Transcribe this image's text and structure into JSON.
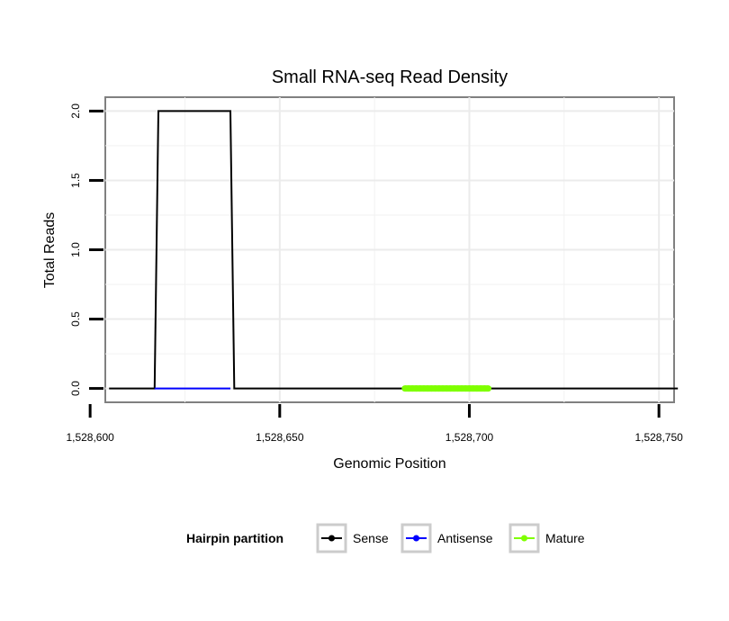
{
  "chart_data": {
    "type": "line",
    "title": "Small RNA-seq Read Density",
    "xlabel": "Genomic Position",
    "ylabel": "Total Reads",
    "xlim": [
      1528604,
      1528754
    ],
    "ylim": [
      -0.1,
      2.1
    ],
    "x_ticks": [
      1528600,
      1528650,
      1528700,
      1528750
    ],
    "x_tick_labels": [
      "1,528,600",
      "1,528,650",
      "1,528,700",
      "1,528,750"
    ],
    "y_ticks": [
      0,
      0.5,
      1,
      1.5,
      2
    ],
    "y_tick_labels": [
      "0.0",
      "0.5",
      "1.0",
      "1.5",
      "2.0"
    ],
    "grid": true,
    "legend": {
      "title": "Hairpin partition",
      "position": "bottom",
      "entries": [
        {
          "label": "Sense",
          "color": "#000000"
        },
        {
          "label": "Antisense",
          "color": "#0000ff"
        },
        {
          "label": "Mature",
          "color": "#7fff00"
        }
      ]
    },
    "series": [
      {
        "name": "Sense",
        "color": "#000000",
        "x": [
          1528605,
          1528617,
          1528618,
          1528637,
          1528638,
          1528755
        ],
        "y": [
          0,
          0,
          2,
          2,
          0,
          0
        ]
      },
      {
        "name": "Antisense",
        "color": "#0000ff",
        "x": [
          1528617,
          1528637
        ],
        "y": [
          0,
          0
        ]
      },
      {
        "name": "Mature",
        "color": "#7fff00",
        "x": [
          1528683,
          1528705
        ],
        "y": [
          0,
          0
        ]
      }
    ]
  }
}
